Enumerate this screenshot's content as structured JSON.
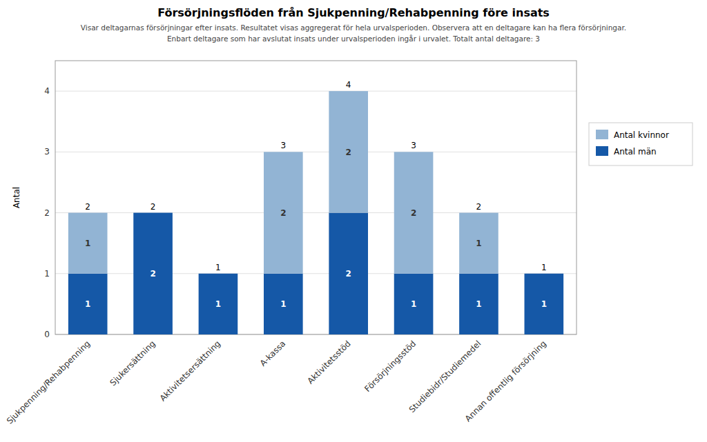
{
  "chart_data": {
    "type": "bar",
    "stacked": true,
    "title": "Försörjningsflöden från Sjukpenning/Rehabpenning före insats",
    "subtitle": [
      "Visar deltagarnas försörjningar efter insats. Resultatet visas aggregerat för hela urvalsperioden. Observera att en deltagare kan ha flera försörjningar.",
      "Enbart deltagare som har avslutat insats under urvalsperioden ingår i urvalet. Totalt antal deltagare: 3"
    ],
    "y_label": "Antal",
    "categories": [
      "Sjukpenning/Rehabpenning",
      "Sjukersättning",
      "Aktivitetsersättning",
      "A-kassa",
      "Aktivitetsstöd",
      "Försörjningsstöd",
      "Studiebidr/Studiemedel",
      "Annan offentlig försörjning"
    ],
    "series": [
      {
        "name": "Antal män",
        "color": "#1558A7",
        "values": [
          1,
          2,
          1,
          1,
          2,
          1,
          1,
          1
        ]
      },
      {
        "name": "Antal kvinnor",
        "color": "#92B4D4",
        "values": [
          1,
          0,
          0,
          2,
          2,
          2,
          1,
          0
        ]
      }
    ],
    "totals": [
      2,
      2,
      1,
      3,
      4,
      3,
      2,
      1
    ],
    "ylim": [
      0,
      4.5
    ],
    "yticks": [
      0,
      1,
      2,
      3,
      4
    ],
    "grid": true,
    "legend": "right",
    "data_labels": true
  }
}
